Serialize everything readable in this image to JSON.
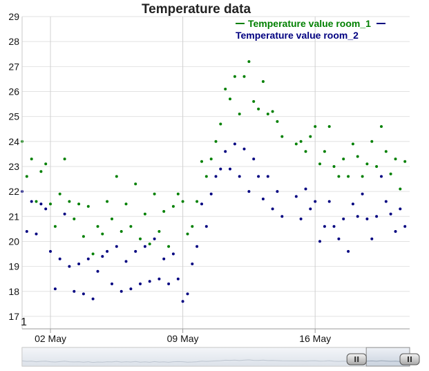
{
  "chart_data": {
    "type": "scatter",
    "title": "Temperature data",
    "xlabel": "",
    "ylabel": "",
    "x_range": [
      "2024-04-30T12:00",
      "2024-05-21T00:00"
    ],
    "ylim": [
      16.5,
      29
    ],
    "y_ticks": [
      17,
      18,
      19,
      20,
      21,
      22,
      23,
      24,
      25,
      26,
      27,
      28,
      29
    ],
    "x_ticks": [
      {
        "date": "2024-05-02",
        "label": "02 May"
      },
      {
        "date": "2024-05-09",
        "label": "09 May"
      },
      {
        "date": "2024-05-16",
        "label": "16 May"
      }
    ],
    "corner_label": "1",
    "grid": true,
    "legend_position": "top-right",
    "series": [
      {
        "name": "Temperature value room_1",
        "color": "#008000",
        "points": [
          [
            "2024-04-30T12:00",
            24.0
          ],
          [
            "2024-04-30T18:00",
            22.6
          ],
          [
            "2024-05-01T00:00",
            23.3
          ],
          [
            "2024-05-01T06:00",
            21.6
          ],
          [
            "2024-05-01T12:00",
            22.8
          ],
          [
            "2024-05-01T18:00",
            23.1
          ],
          [
            "2024-05-02T00:00",
            21.5
          ],
          [
            "2024-05-02T06:00",
            20.6
          ],
          [
            "2024-05-02T12:00",
            21.9
          ],
          [
            "2024-05-02T18:00",
            23.3
          ],
          [
            "2024-05-03T00:00",
            21.6
          ],
          [
            "2024-05-03T06:00",
            20.9
          ],
          [
            "2024-05-03T12:00",
            21.5
          ],
          [
            "2024-05-03T18:00",
            20.2
          ],
          [
            "2024-05-04T00:00",
            21.4
          ],
          [
            "2024-05-04T06:00",
            19.5
          ],
          [
            "2024-05-04T12:00",
            20.6
          ],
          [
            "2024-05-04T18:00",
            20.3
          ],
          [
            "2024-05-05T00:00",
            21.6
          ],
          [
            "2024-05-05T06:00",
            20.9
          ],
          [
            "2024-05-05T12:00",
            22.6
          ],
          [
            "2024-05-05T18:00",
            20.4
          ],
          [
            "2024-05-06T00:00",
            21.5
          ],
          [
            "2024-05-06T06:00",
            20.6
          ],
          [
            "2024-05-06T12:00",
            22.3
          ],
          [
            "2024-05-06T18:00",
            20.1
          ],
          [
            "2024-05-07T00:00",
            21.1
          ],
          [
            "2024-05-07T06:00",
            19.9
          ],
          [
            "2024-05-07T12:00",
            21.9
          ],
          [
            "2024-05-07T18:00",
            20.4
          ],
          [
            "2024-05-08T00:00",
            21.2
          ],
          [
            "2024-05-08T06:00",
            19.8
          ],
          [
            "2024-05-08T12:00",
            21.4
          ],
          [
            "2024-05-08T18:00",
            21.9
          ],
          [
            "2024-05-09T00:00",
            21.6
          ],
          [
            "2024-05-09T06:00",
            20.3
          ],
          [
            "2024-05-09T12:00",
            20.6
          ],
          [
            "2024-05-09T18:00",
            21.6
          ],
          [
            "2024-05-10T00:00",
            23.2
          ],
          [
            "2024-05-10T06:00",
            22.6
          ],
          [
            "2024-05-10T12:00",
            23.3
          ],
          [
            "2024-05-10T18:00",
            24.0
          ],
          [
            "2024-05-11T00:00",
            24.7
          ],
          [
            "2024-05-11T06:00",
            26.1
          ],
          [
            "2024-05-11T12:00",
            25.7
          ],
          [
            "2024-05-11T18:00",
            26.6
          ],
          [
            "2024-05-12T00:00",
            25.1
          ],
          [
            "2024-05-12T06:00",
            26.6
          ],
          [
            "2024-05-12T12:00",
            27.2
          ],
          [
            "2024-05-12T18:00",
            25.6
          ],
          [
            "2024-05-13T00:00",
            25.3
          ],
          [
            "2024-05-13T06:00",
            26.4
          ],
          [
            "2024-05-13T12:00",
            25.1
          ],
          [
            "2024-05-13T18:00",
            25.2
          ],
          [
            "2024-05-14T00:00",
            24.8
          ],
          [
            "2024-05-14T06:00",
            24.2
          ],
          [
            "2024-05-15T00:00",
            23.9
          ],
          [
            "2024-05-15T06:00",
            24.0
          ],
          [
            "2024-05-15T12:00",
            23.6
          ],
          [
            "2024-05-15T18:00",
            24.2
          ],
          [
            "2024-05-16T00:00",
            24.6
          ],
          [
            "2024-05-16T06:00",
            23.1
          ],
          [
            "2024-05-16T12:00",
            23.6
          ],
          [
            "2024-05-16T18:00",
            24.6
          ],
          [
            "2024-05-17T00:00",
            23.0
          ],
          [
            "2024-05-17T06:00",
            22.6
          ],
          [
            "2024-05-17T12:00",
            23.3
          ],
          [
            "2024-05-17T18:00",
            22.6
          ],
          [
            "2024-05-18T00:00",
            23.9
          ],
          [
            "2024-05-18T06:00",
            23.4
          ],
          [
            "2024-05-18T12:00",
            22.6
          ],
          [
            "2024-05-18T18:00",
            23.1
          ],
          [
            "2024-05-19T00:00",
            24.0
          ],
          [
            "2024-05-19T06:00",
            23.0
          ],
          [
            "2024-05-19T12:00",
            24.6
          ],
          [
            "2024-05-19T18:00",
            23.6
          ],
          [
            "2024-05-20T00:00",
            22.7
          ],
          [
            "2024-05-20T06:00",
            23.3
          ],
          [
            "2024-05-20T12:00",
            22.1
          ],
          [
            "2024-05-20T18:00",
            23.2
          ]
        ]
      },
      {
        "name": "Temperature value room_2",
        "color": "#000080",
        "points": [
          [
            "2024-04-30T12:00",
            22.0
          ],
          [
            "2024-04-30T18:00",
            20.4
          ],
          [
            "2024-05-01T00:00",
            21.6
          ],
          [
            "2024-05-01T06:00",
            20.3
          ],
          [
            "2024-05-01T12:00",
            21.5
          ],
          [
            "2024-05-01T18:00",
            21.3
          ],
          [
            "2024-05-02T00:00",
            19.6
          ],
          [
            "2024-05-02T06:00",
            18.1
          ],
          [
            "2024-05-02T12:00",
            19.3
          ],
          [
            "2024-05-02T18:00",
            21.1
          ],
          [
            "2024-05-03T00:00",
            19.0
          ],
          [
            "2024-05-03T06:00",
            18.0
          ],
          [
            "2024-05-03T12:00",
            19.1
          ],
          [
            "2024-05-03T18:00",
            17.9
          ],
          [
            "2024-05-04T00:00",
            19.3
          ],
          [
            "2024-05-04T06:00",
            17.7
          ],
          [
            "2024-05-04T12:00",
            18.8
          ],
          [
            "2024-05-04T18:00",
            19.4
          ],
          [
            "2024-05-05T00:00",
            19.6
          ],
          [
            "2024-05-05T06:00",
            18.3
          ],
          [
            "2024-05-05T12:00",
            19.8
          ],
          [
            "2024-05-05T18:00",
            18.0
          ],
          [
            "2024-05-06T00:00",
            19.2
          ],
          [
            "2024-05-06T06:00",
            18.1
          ],
          [
            "2024-05-06T12:00",
            19.6
          ],
          [
            "2024-05-06T18:00",
            18.3
          ],
          [
            "2024-05-07T00:00",
            19.8
          ],
          [
            "2024-05-07T06:00",
            18.4
          ],
          [
            "2024-05-07T12:00",
            20.1
          ],
          [
            "2024-05-07T18:00",
            18.5
          ],
          [
            "2024-05-08T00:00",
            19.3
          ],
          [
            "2024-05-08T06:00",
            18.3
          ],
          [
            "2024-05-08T12:00",
            19.5
          ],
          [
            "2024-05-08T18:00",
            18.5
          ],
          [
            "2024-05-09T00:00",
            17.6
          ],
          [
            "2024-05-09T06:00",
            17.9
          ],
          [
            "2024-05-09T12:00",
            19.1
          ],
          [
            "2024-05-09T18:00",
            19.8
          ],
          [
            "2024-05-10T00:00",
            21.5
          ],
          [
            "2024-05-10T06:00",
            20.6
          ],
          [
            "2024-05-10T12:00",
            21.9
          ],
          [
            "2024-05-10T18:00",
            22.6
          ],
          [
            "2024-05-11T00:00",
            22.9
          ],
          [
            "2024-05-11T06:00",
            23.6
          ],
          [
            "2024-05-11T12:00",
            22.9
          ],
          [
            "2024-05-11T18:00",
            23.9
          ],
          [
            "2024-05-12T00:00",
            22.6
          ],
          [
            "2024-05-12T06:00",
            23.7
          ],
          [
            "2024-05-12T12:00",
            22.0
          ],
          [
            "2024-05-12T18:00",
            23.3
          ],
          [
            "2024-05-13T00:00",
            22.6
          ],
          [
            "2024-05-13T06:00",
            21.7
          ],
          [
            "2024-05-13T12:00",
            22.6
          ],
          [
            "2024-05-13T18:00",
            21.3
          ],
          [
            "2024-05-14T00:00",
            22.0
          ],
          [
            "2024-05-14T06:00",
            21.0
          ],
          [
            "2024-05-15T00:00",
            21.8
          ],
          [
            "2024-05-15T06:00",
            20.9
          ],
          [
            "2024-05-15T12:00",
            22.1
          ],
          [
            "2024-05-15T18:00",
            21.3
          ],
          [
            "2024-05-16T00:00",
            21.6
          ],
          [
            "2024-05-16T06:00",
            20.0
          ],
          [
            "2024-05-16T12:00",
            20.6
          ],
          [
            "2024-05-16T18:00",
            21.6
          ],
          [
            "2024-05-17T00:00",
            20.6
          ],
          [
            "2024-05-17T06:00",
            20.1
          ],
          [
            "2024-05-17T12:00",
            20.9
          ],
          [
            "2024-05-17T18:00",
            19.6
          ],
          [
            "2024-05-18T00:00",
            21.5
          ],
          [
            "2024-05-18T06:00",
            21.0
          ],
          [
            "2024-05-18T12:00",
            21.9
          ],
          [
            "2024-05-18T18:00",
            20.9
          ],
          [
            "2024-05-19T00:00",
            20.1
          ],
          [
            "2024-05-19T06:00",
            21.0
          ],
          [
            "2024-05-19T12:00",
            22.6
          ],
          [
            "2024-05-19T18:00",
            21.6
          ],
          [
            "2024-05-20T00:00",
            21.1
          ],
          [
            "2024-05-20T06:00",
            20.4
          ],
          [
            "2024-05-20T12:00",
            21.3
          ],
          [
            "2024-05-20T18:00",
            20.6
          ]
        ]
      }
    ]
  },
  "range_selector": {
    "handles": [
      "left",
      "right"
    ],
    "selected_range_fraction": [
      0.888,
      1.0
    ]
  }
}
